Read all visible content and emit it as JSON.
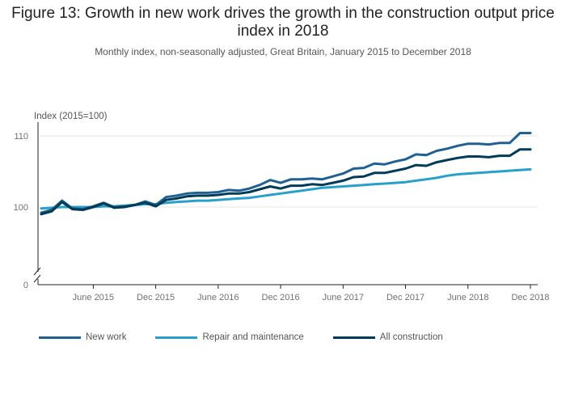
{
  "title": "Figure 13: Growth in new work drives the growth in the construction output price index in 2018",
  "subtitle": "Monthly index, non-seasonally adjusted, Great Britain, January 2015 to December 2018",
  "colors": {
    "new_work": "#206095",
    "repair": "#27a0cc",
    "all": "#003c57"
  },
  "chart_data": {
    "type": "line",
    "title": "Figure 13: Growth in new work drives the growth in the construction output price index in 2018",
    "ylabel": "Index (2015=100)",
    "xlabel": "",
    "ylim": [
      0,
      111
    ],
    "y_axis_break": true,
    "y_ticks": [
      0,
      100,
      110
    ],
    "x_ticks": [
      {
        "index": 5,
        "label": "June 2015"
      },
      {
        "index": 11,
        "label": "Dec 2015"
      },
      {
        "index": 17,
        "label": "June 2016"
      },
      {
        "index": 23,
        "label": "Dec 2016"
      },
      {
        "index": 29,
        "label": "June 2017"
      },
      {
        "index": 35,
        "label": "Dec 2017"
      },
      {
        "index": 41,
        "label": "June 2018"
      },
      {
        "index": 47,
        "label": "Dec 2018"
      }
    ],
    "x": [
      "Jan 2015",
      "Feb 2015",
      "Mar 2015",
      "Apr 2015",
      "May 2015",
      "Jun 2015",
      "Jul 2015",
      "Aug 2015",
      "Sep 2015",
      "Oct 2015",
      "Nov 2015",
      "Dec 2015",
      "Jan 2016",
      "Feb 2016",
      "Mar 2016",
      "Apr 2016",
      "May 2016",
      "Jun 2016",
      "Jul 2016",
      "Aug 2016",
      "Sep 2016",
      "Oct 2016",
      "Nov 2016",
      "Dec 2016",
      "Jan 2017",
      "Feb 2017",
      "Mar 2017",
      "Apr 2017",
      "May 2017",
      "Jun 2017",
      "Jul 2017",
      "Aug 2017",
      "Sep 2017",
      "Oct 2017",
      "Nov 2017",
      "Dec 2017",
      "Jan 2018",
      "Feb 2018",
      "Mar 2018",
      "Apr 2018",
      "May 2018",
      "Jun 2018",
      "Jul 2018",
      "Aug 2018",
      "Sep 2018",
      "Oct 2018",
      "Nov 2018",
      "Dec 2018"
    ],
    "series": [
      {
        "name": "New work",
        "color_key": "new_work",
        "values": [
          99.2,
          99.6,
          100.9,
          99.8,
          99.7,
          100.1,
          100.6,
          100.0,
          100.1,
          100.3,
          100.8,
          100.3,
          101.4,
          101.6,
          101.9,
          102.0,
          102.0,
          102.1,
          102.4,
          102.3,
          102.6,
          103.1,
          103.8,
          103.4,
          103.9,
          103.9,
          104.0,
          103.9,
          104.3,
          104.7,
          105.4,
          105.5,
          106.1,
          106.0,
          106.4,
          106.7,
          107.4,
          107.3,
          107.9,
          108.2,
          108.6,
          108.9,
          108.9,
          108.8,
          109.0,
          109.0,
          110.4,
          110.4
        ]
      },
      {
        "name": "Repair and maintenance",
        "color_key": "repair",
        "values": [
          99.8,
          99.9,
          100.0,
          100.0,
          100.0,
          100.0,
          100.1,
          100.1,
          100.2,
          100.3,
          100.4,
          100.4,
          100.6,
          100.7,
          100.8,
          100.9,
          100.9,
          101.0,
          101.1,
          101.2,
          101.3,
          101.5,
          101.7,
          101.9,
          102.1,
          102.3,
          102.5,
          102.7,
          102.8,
          102.9,
          103.0,
          103.1,
          103.2,
          103.3,
          103.4,
          103.5,
          103.7,
          103.9,
          104.1,
          104.4,
          104.6,
          104.7,
          104.8,
          104.9,
          105.0,
          105.1,
          105.2,
          105.3
        ]
      },
      {
        "name": "All construction",
        "color_key": "all",
        "values": [
          99.0,
          99.4,
          100.7,
          99.7,
          99.6,
          100.0,
          100.5,
          99.9,
          100.0,
          100.3,
          100.6,
          100.1,
          101.0,
          101.2,
          101.5,
          101.6,
          101.6,
          101.7,
          101.9,
          101.9,
          102.1,
          102.5,
          102.9,
          102.6,
          103.0,
          103.0,
          103.2,
          103.1,
          103.4,
          103.7,
          104.2,
          104.3,
          104.8,
          104.8,
          105.1,
          105.4,
          105.9,
          105.8,
          106.3,
          106.6,
          106.9,
          107.1,
          107.1,
          107.0,
          107.2,
          107.2,
          108.1,
          108.1
        ]
      }
    ],
    "legend": {
      "position": "bottom"
    }
  },
  "legend_items": [
    {
      "label": "New work",
      "color_key": "new_work"
    },
    {
      "label": "Repair and maintenance",
      "color_key": "repair"
    },
    {
      "label": "All construction",
      "color_key": "all"
    }
  ]
}
